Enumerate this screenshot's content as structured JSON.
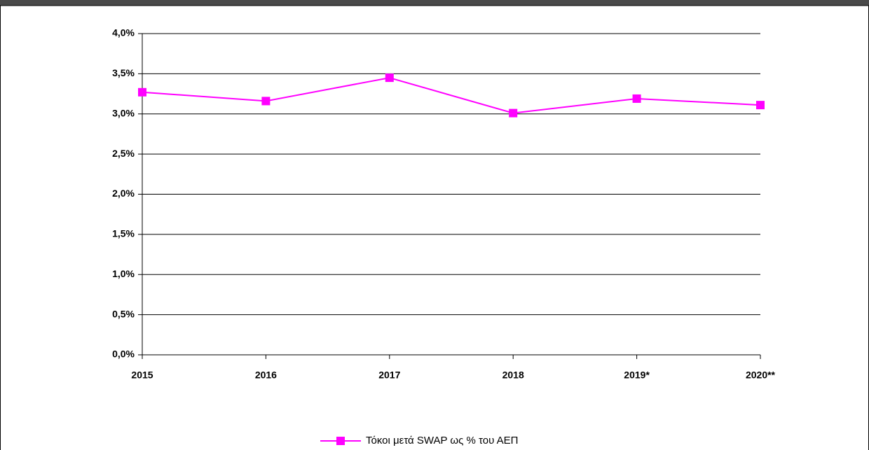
{
  "chart_data": {
    "type": "line",
    "categories": [
      "2015",
      "2016",
      "2017",
      "2018",
      "2019*",
      "2020**"
    ],
    "series": [
      {
        "name": "Τόκοι μετά SWAP ως % του ΑΕΠ",
        "color": "#ff00ff",
        "values": [
          3.27,
          3.16,
          3.45,
          3.01,
          3.19,
          3.11
        ]
      }
    ],
    "ylim": [
      0,
      4
    ],
    "yticks": [
      {
        "value": 0,
        "label": "0,0%"
      },
      {
        "value": 0.5,
        "label": "0,5%"
      },
      {
        "value": 1,
        "label": "1,0%"
      },
      {
        "value": 1.5,
        "label": "1,5%"
      },
      {
        "value": 2,
        "label": "2,0%"
      },
      {
        "value": 2.5,
        "label": "2,5%"
      },
      {
        "value": 3,
        "label": "3,0%"
      },
      {
        "value": 3.5,
        "label": "3,5%"
      },
      {
        "value": 4,
        "label": "4,0%"
      }
    ],
    "grid": true,
    "legend": "bottom"
  }
}
